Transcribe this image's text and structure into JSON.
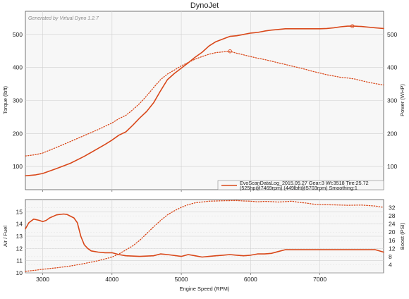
{
  "window": {
    "title": "DynoJet",
    "watermark": "Generated by Virtual Dyno 1.2.7"
  },
  "colors": {
    "series": "#d9481a",
    "plot_bg": "#f7f7f7",
    "grid": "#d0d0d0",
    "frame": "#555555"
  },
  "chart_data": [
    {
      "type": "line",
      "panel": "top",
      "title": "DynoJet",
      "xlabel": "",
      "ylabel_left": "Torque (lbft)",
      "ylabel_right": "Power (WHP)",
      "xlim": [
        2750,
        7920
      ],
      "ylim": [
        30,
        570
      ],
      "xticks": [
        3000,
        4000,
        5000,
        6000,
        7000
      ],
      "yticks_left": [
        100,
        200,
        300,
        400,
        500
      ],
      "yticks_right": [
        100,
        200,
        300,
        400,
        500
      ],
      "grid": true,
      "legend": {
        "placement": "bottom-right",
        "line1": "EvoScanDataLog_2015.05.27 Gear:3 Wt:3518 Tire:25.72",
        "line2": "(525hp@7469rpm) (449lbft@5703rpm) Smoothing:1"
      },
      "series": [
        {
          "role": "power",
          "style": "solid",
          "x": [
            2750,
            2900,
            3000,
            3200,
            3400,
            3600,
            3800,
            3900,
            4000,
            4100,
            4200,
            4300,
            4400,
            4500,
            4600,
            4700,
            4800,
            4900,
            5000,
            5100,
            5200,
            5300,
            5400,
            5500,
            5600,
            5700,
            5800,
            5900,
            6000,
            6100,
            6200,
            6300,
            6400,
            6500,
            6600,
            6700,
            6800,
            6900,
            7000,
            7100,
            7200,
            7300,
            7400,
            7469,
            7500,
            7600,
            7700,
            7800,
            7920
          ],
          "values": [
            72,
            75,
            79,
            94,
            110,
            131,
            155,
            167,
            180,
            195,
            205,
            225,
            247,
            267,
            293,
            329,
            363,
            382,
            398,
            414,
            431,
            446,
            465,
            478,
            486,
            494,
            496,
            500,
            504,
            506,
            510,
            513,
            515,
            517,
            517,
            517,
            517,
            517,
            517,
            518,
            520,
            523,
            525,
            525,
            525,
            524,
            522,
            520,
            518
          ]
        },
        {
          "role": "torque",
          "style": "dotted",
          "x": [
            2750,
            2900,
            3000,
            3200,
            3400,
            3600,
            3800,
            4000,
            4100,
            4200,
            4300,
            4400,
            4500,
            4600,
            4700,
            4800,
            4900,
            5000,
            5100,
            5200,
            5300,
            5400,
            5500,
            5600,
            5703,
            5800,
            5900,
            6000,
            6100,
            6200,
            6300,
            6400,
            6500,
            6600,
            6700,
            6800,
            6900,
            7000,
            7100,
            7200,
            7300,
            7400,
            7500,
            7600,
            7700,
            7800,
            7920
          ],
          "values": [
            132,
            136,
            141,
            158,
            176,
            194,
            212,
            232,
            245,
            255,
            272,
            291,
            314,
            339,
            363,
            380,
            392,
            405,
            415,
            425,
            433,
            440,
            445,
            447,
            449,
            443,
            438,
            433,
            428,
            424,
            419,
            414,
            409,
            404,
            399,
            394,
            388,
            383,
            378,
            374,
            370,
            368,
            365,
            360,
            355,
            351,
            347
          ]
        }
      ],
      "markers": [
        {
          "series": "power",
          "x": 7469,
          "y": 525
        },
        {
          "series": "torque",
          "x": 5703,
          "y": 449
        }
      ]
    },
    {
      "type": "line",
      "panel": "bottom",
      "xlabel": "Engine Speed (RPM)",
      "ylabel_left": "Air / Fuel",
      "ylabel_right": "Boost (PSI)",
      "xlim": [
        2750,
        7920
      ],
      "ylim_left": [
        10,
        16
      ],
      "ylim_right": [
        0,
        36
      ],
      "xticks": [
        3000,
        4000,
        5000,
        6000,
        7000
      ],
      "yticks_left": [
        10,
        11,
        12,
        13,
        14,
        15
      ],
      "yticks_right": [
        4,
        8,
        12,
        16,
        20,
        24,
        28,
        32
      ],
      "grid": true,
      "series": [
        {
          "role": "air_fuel",
          "axis": "left",
          "style": "solid",
          "x": [
            2750,
            2800,
            2870,
            2950,
            3000,
            3050,
            3100,
            3200,
            3300,
            3350,
            3450,
            3500,
            3550,
            3600,
            3650,
            3700,
            3800,
            3900,
            4000,
            4100,
            4200,
            4400,
            4600,
            4700,
            4800,
            5000,
            5100,
            5200,
            5300,
            5400,
            5500,
            5600,
            5700,
            5800,
            5900,
            6000,
            6100,
            6200,
            6300,
            6400,
            6500,
            6600,
            6700,
            6800,
            7000,
            7200,
            7400,
            7600,
            7800,
            7920
          ],
          "values": [
            13.6,
            14.1,
            14.4,
            14.3,
            14.2,
            14.3,
            14.5,
            14.75,
            14.82,
            14.78,
            14.5,
            14.1,
            13.0,
            12.3,
            12.0,
            11.8,
            11.7,
            11.65,
            11.65,
            11.5,
            11.4,
            11.35,
            11.4,
            11.55,
            11.5,
            11.35,
            11.5,
            11.4,
            11.3,
            11.35,
            11.4,
            11.45,
            11.5,
            11.45,
            11.4,
            11.45,
            11.55,
            11.55,
            11.6,
            11.75,
            11.9,
            11.9,
            11.9,
            11.9,
            11.9,
            11.9,
            11.9,
            11.9,
            11.9,
            11.7
          ]
        },
        {
          "role": "boost",
          "axis": "right",
          "style": "dotted",
          "x": [
            2750,
            2900,
            3000,
            3200,
            3400,
            3600,
            3800,
            4000,
            4100,
            4200,
            4300,
            4400,
            4500,
            4600,
            4700,
            4800,
            4900,
            5000,
            5100,
            5200,
            5400,
            5600,
            5800,
            5900,
            6000,
            6100,
            6200,
            6300,
            6400,
            6500,
            6600,
            6700,
            6800,
            6900,
            7000,
            7200,
            7400,
            7600,
            7800,
            7920
          ],
          "values": [
            0.8,
            1.3,
            1.8,
            2.5,
            3.4,
            4.6,
            6.0,
            7.8,
            9.3,
            11.3,
            13.3,
            16.0,
            19.3,
            22.6,
            25.7,
            28.5,
            30.5,
            32.2,
            33.5,
            34.4,
            35.2,
            35.4,
            35.5,
            35.3,
            35.2,
            34.9,
            35.1,
            35.0,
            34.8,
            35.0,
            35.2,
            34.6,
            34.3,
            33.8,
            33.5,
            33.4,
            33.2,
            33.3,
            32.8,
            32.2
          ]
        }
      ]
    }
  ]
}
